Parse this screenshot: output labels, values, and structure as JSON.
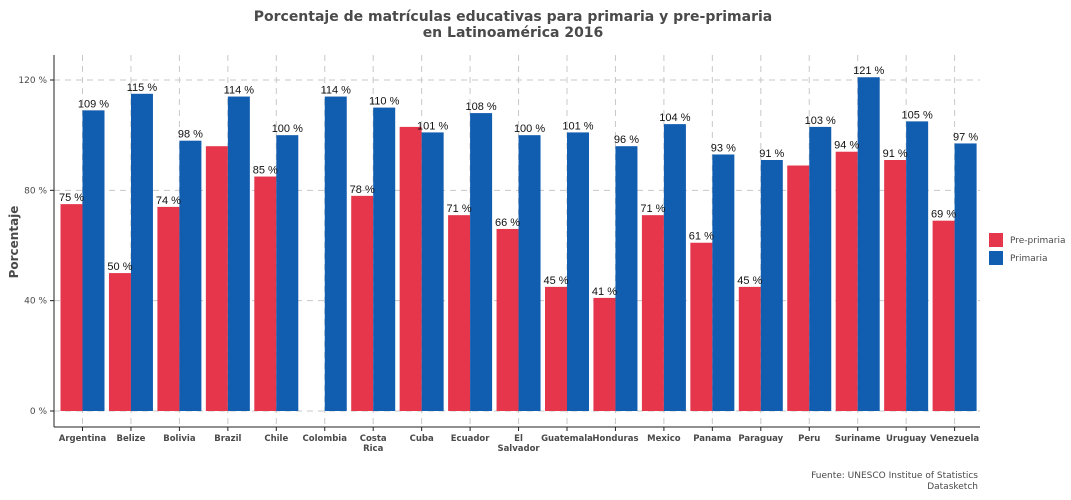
{
  "chart_data": {
    "type": "bar",
    "title_lines": [
      "Porcentaje de matrículas educativas para primaria y pre-primaria",
      "en Latinoamérica 2016"
    ],
    "xlabel": "",
    "ylabel": "Porcentaje",
    "ylim": [
      0,
      130
    ],
    "yticks": [
      0,
      40,
      80,
      120
    ],
    "ytick_labels": [
      "0 %",
      "40 %",
      "80 %",
      "120 %"
    ],
    "grid": true,
    "legend_position": "right",
    "categories": [
      "Argentina",
      "Belize",
      "Bolivia",
      "Brazil",
      "Chile",
      "Colombia",
      "Costa Rica",
      "Cuba",
      "Ecuador",
      "El Salvador",
      "Guatemala",
      "Honduras",
      "Mexico",
      "Panama",
      "Paraguay",
      "Peru",
      "Suriname",
      "Uruguay",
      "Venezuela"
    ],
    "series": [
      {
        "name": "Pre-primaria",
        "color": "#e5364b",
        "values": [
          75,
          50,
          74,
          96,
          85,
          null,
          78,
          103,
          71,
          66,
          45,
          41,
          71,
          61,
          45,
          89,
          94,
          91,
          69
        ],
        "labels": [
          "75 %",
          "50 %",
          "74 %",
          "",
          "85 %",
          "",
          "78 %",
          "",
          "71 %",
          "66 %",
          "45 %",
          "41 %",
          "71 %",
          "61 %",
          "45 %",
          "",
          "94 %",
          "91 %",
          "69 %"
        ]
      },
      {
        "name": "Primaria",
        "color": "#115db0",
        "values": [
          109,
          115,
          98,
          114,
          100,
          114,
          110,
          101,
          108,
          100,
          101,
          96,
          104,
          93,
          91,
          103,
          121,
          105,
          97
        ],
        "labels": [
          "109 %",
          "115 %",
          "98 %",
          "114 %",
          "100 %",
          "114 %",
          "110 %",
          "101 %",
          "108 %",
          "100 %",
          "101 %",
          "96 %",
          "104 %",
          "93 %",
          "91 %",
          "103 %",
          "121 %",
          "105 %",
          "97 %"
        ]
      }
    ],
    "caption_lines": [
      "Fuente: UNESCO Institue of Statistics",
      "Datasketch"
    ]
  }
}
